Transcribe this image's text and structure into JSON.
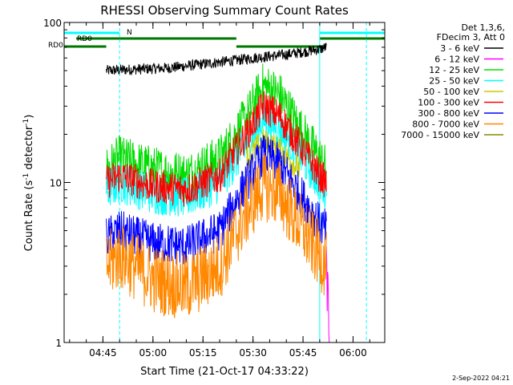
{
  "chart_data": {
    "type": "line",
    "title": "RHESSI Observing Summary Count Rates",
    "xlabel": "Start Time (21-Oct-17 04:33:22)",
    "ylabel_main": "Count Rate (s",
    "ylabel_sup": "-1",
    "ylabel_rest": " detector",
    "ylabel_sup2": "-1",
    "ylabel_end": ")",
    "yscale": "log",
    "ylim": [
      1,
      100
    ],
    "xlim": [
      "04:33:22",
      "06:09:30"
    ],
    "x_ticks": [
      "04:45",
      "05:00",
      "05:15",
      "05:30",
      "05:45",
      "06:00"
    ],
    "y_ticks": [
      "1",
      "10",
      "100"
    ],
    "legend_header": [
      "Det 1,3,6,",
      "FDecim 3, Att 0"
    ],
    "legend_position": "right",
    "series": [
      {
        "name": "3 - 6 keV",
        "color": "#000000",
        "x": [
          "04:46",
          "04:55",
          "05:05",
          "05:15",
          "05:25",
          "05:30",
          "05:40",
          "05:50",
          "05:52"
        ],
        "values": [
          50,
          51,
          52,
          55,
          58,
          60,
          63,
          68,
          70
        ]
      },
      {
        "name": "6 - 12 keV",
        "color": "#ff00ff",
        "x": [
          "05:52",
          "05:53"
        ],
        "values": [
          3,
          1
        ]
      },
      {
        "name": "12 - 25 keV",
        "color": "#00dd00",
        "x": [
          "04:46",
          "04:50",
          "05:00",
          "05:10",
          "05:20",
          "05:28",
          "05:33",
          "05:38",
          "05:45",
          "05:50",
          "05:52"
        ],
        "values": [
          12,
          14,
          12,
          11,
          14,
          25,
          40,
          35,
          20,
          14,
          12
        ]
      },
      {
        "name": "25 - 50 keV",
        "color": "#00ffff",
        "x": [
          "04:46",
          "04:50",
          "05:00",
          "05:10",
          "05:20",
          "05:28",
          "05:33",
          "05:38",
          "05:45",
          "05:50",
          "05:52"
        ],
        "values": [
          9,
          10,
          8.5,
          8,
          10,
          17,
          25,
          22,
          14,
          10,
          9
        ]
      },
      {
        "name": "50 - 100 keV",
        "color": "#cccc00",
        "x": [
          "05:28",
          "05:33",
          "05:38",
          "05:44"
        ],
        "values": [
          14,
          18,
          16,
          12
        ]
      },
      {
        "name": "100 - 300 keV",
        "color": "#ff0000",
        "x": [
          "04:46",
          "04:50",
          "05:00",
          "05:10",
          "05:20",
          "05:28",
          "05:33",
          "05:38",
          "05:45",
          "05:50",
          "05:52"
        ],
        "values": [
          10,
          11,
          9.5,
          9,
          11,
          20,
          30,
          26,
          16,
          11,
          10
        ]
      },
      {
        "name": "300 - 800 keV",
        "color": "#0000ff",
        "x": [
          "04:46",
          "04:50",
          "05:00",
          "05:10",
          "05:20",
          "05:28",
          "05:33",
          "05:38",
          "05:45",
          "05:50",
          "05:52"
        ],
        "values": [
          4.5,
          5,
          4.2,
          4,
          5,
          10,
          15,
          13,
          8,
          5.5,
          5
        ]
      },
      {
        "name": "800 - 7000 keV",
        "color": "#ff8800",
        "x": [
          "04:46",
          "04:50",
          "05:00",
          "05:10",
          "05:20",
          "05:28",
          "05:33",
          "05:38",
          "05:45",
          "05:50",
          "05:52"
        ],
        "values": [
          3,
          3.5,
          2.5,
          2.2,
          3,
          6.5,
          9.5,
          8.5,
          5,
          3.5,
          3
        ]
      },
      {
        "name": "7000 - 15000 keV",
        "color": "#888800",
        "x": [],
        "values": []
      }
    ],
    "annotations": [
      {
        "label": "RD0",
        "color": "#007700"
      },
      {
        "label": "RD0",
        "color": "#007700"
      },
      {
        "label": "N",
        "color": "#00dddd"
      }
    ],
    "bands": [
      {
        "color": "#00ffff",
        "x": [
          "04:33:22",
          "04:50:00"
        ],
        "level": "top"
      },
      {
        "color": "#00ffff",
        "x": [
          "05:50:00",
          "06:09:30"
        ],
        "level": "top"
      },
      {
        "color": "#007700",
        "x": [
          "04:37:00",
          "05:25:00"
        ],
        "level": "row1"
      },
      {
        "color": "#007700",
        "x": [
          "05:50:00",
          "06:09:30"
        ],
        "level": "row1"
      },
      {
        "color": "#007700",
        "x": [
          "04:33:22",
          "04:46:00"
        ],
        "level": "row2"
      },
      {
        "color": "#007700",
        "x": [
          "05:25:00",
          "05:52:00"
        ],
        "level": "row2"
      }
    ],
    "vlines": [
      {
        "x": "04:33:22",
        "color": "#00ffff",
        "style": "solid"
      },
      {
        "x": "04:50:00",
        "color": "#00ffff",
        "style": "dashed"
      },
      {
        "x": "05:50:00",
        "color": "#00ffff",
        "style": "solid"
      },
      {
        "x": "06:04:00",
        "color": "#00ffff",
        "style": "dashed"
      }
    ],
    "footer": "2-Sep-2022 04:21"
  }
}
